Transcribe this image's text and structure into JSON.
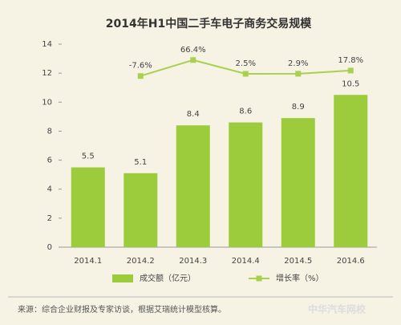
{
  "chart_data": {
    "type": "bar_line",
    "title": "2014年H1中国二手车电子商务交易规模",
    "categories": [
      "2014.1",
      "2014.2",
      "2014.3",
      "2014.4",
      "2014.5",
      "2014.6"
    ],
    "series": [
      {
        "name": "成交额（亿元）",
        "type": "bar",
        "color": "#9ccb3b",
        "values": [
          5.5,
          5.1,
          8.4,
          8.6,
          8.9,
          10.5
        ]
      },
      {
        "name": "增长率（%）",
        "type": "line",
        "axis": "y2",
        "color": "#a9d14f",
        "values": [
          null,
          -7.6,
          66.4,
          2.5,
          2.9,
          17.8
        ],
        "value_labels": [
          null,
          "-7.6%",
          "66.4%",
          "2.5%",
          "2.9%",
          "17.8%"
        ]
      }
    ],
    "ylim": [
      0,
      14
    ],
    "yticks": [
      0,
      2,
      4,
      6,
      8,
      10,
      12,
      14
    ],
    "y2lim": [
      -800,
      140
    ],
    "source": "来源：综合企业财报及专家访谈，根据艾瑞统计模型核算。",
    "watermark": "中华汽车网校"
  }
}
